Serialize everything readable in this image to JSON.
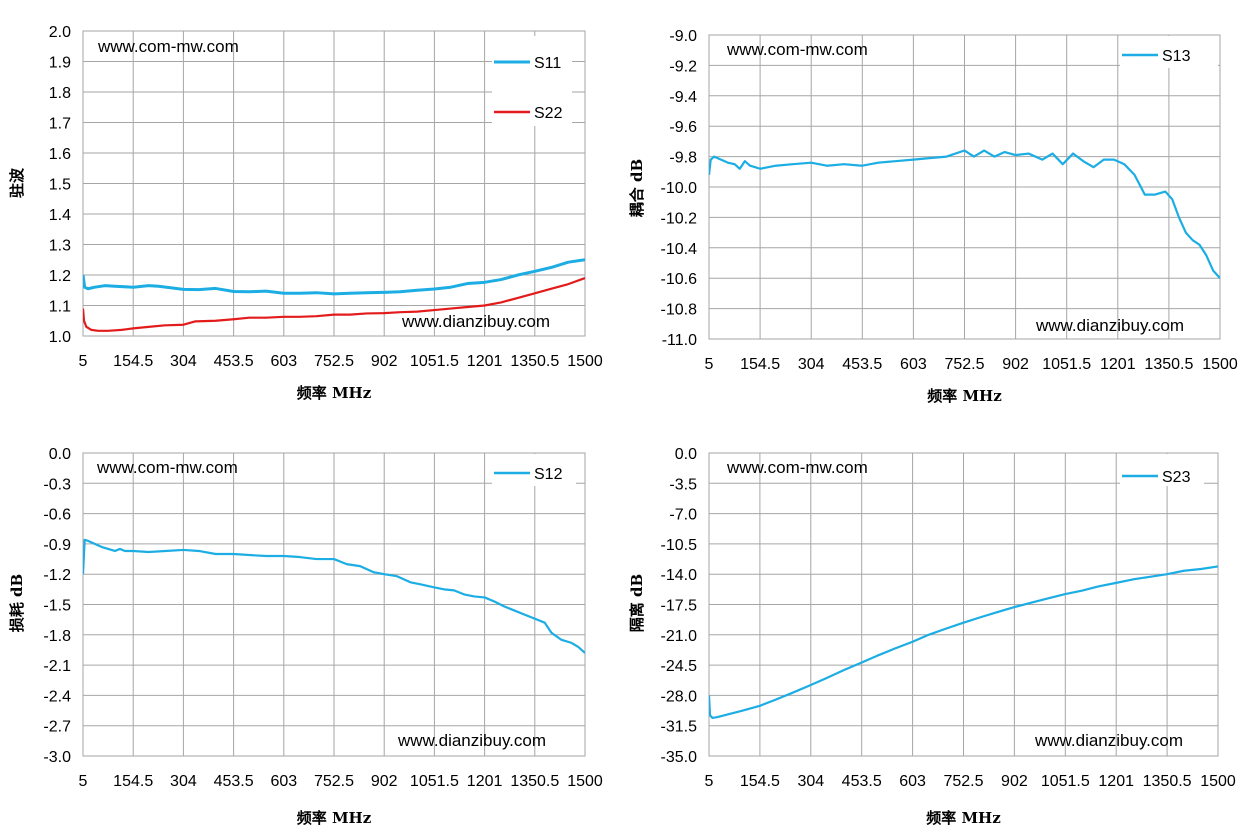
{
  "chart_data": [
    {
      "type": "line",
      "xlabel": "频率 MHz",
      "ylabel": "驻波",
      "x_ticks": [
        "5",
        "154.5",
        "304",
        "453.5",
        "603",
        "752.5",
        "902",
        "1051.5",
        "1201",
        "1350.5",
        "1500"
      ],
      "xlim": [
        5,
        1500
      ],
      "ylim": [
        1.0,
        2.0
      ],
      "y_ticks": [
        "1.0",
        "1.1",
        "1.2",
        "1.3",
        "1.4",
        "1.5",
        "1.6",
        "1.7",
        "1.8",
        "1.9",
        "2.0"
      ],
      "grid": true,
      "legend": "top-right",
      "watermarks": [
        "www.com-mw.com",
        "www.dianzibuy.com"
      ],
      "series": [
        {
          "name": "S11",
          "color": "#1cade4",
          "x": [
            5,
            10,
            20,
            40,
            70,
            100,
            154.5,
            200,
            230,
            304,
            350,
            400,
            453.5,
            500,
            550,
            603,
            650,
            700,
            752.5,
            800,
            850,
            902,
            950,
            1000,
            1051.5,
            1100,
            1150,
            1201,
            1250,
            1300,
            1350.5,
            1400,
            1450,
            1500
          ],
          "y": [
            1.2,
            1.16,
            1.155,
            1.16,
            1.165,
            1.163,
            1.16,
            1.165,
            1.163,
            1.153,
            1.152,
            1.156,
            1.146,
            1.145,
            1.147,
            1.14,
            1.14,
            1.142,
            1.138,
            1.14,
            1.142,
            1.143,
            1.145,
            1.15,
            1.154,
            1.16,
            1.172,
            1.176,
            1.185,
            1.2,
            1.212,
            1.225,
            1.242,
            1.25
          ]
        },
        {
          "name": "S22",
          "color": "#e31b1b",
          "x": [
            5,
            8,
            15,
            30,
            50,
            80,
            120,
            154.5,
            200,
            250,
            304,
            340,
            400,
            453.5,
            500,
            550,
            603,
            650,
            700,
            752.5,
            800,
            850,
            902,
            950,
            1000,
            1051.5,
            1100,
            1150,
            1201,
            1250,
            1300,
            1350.5,
            1400,
            1450,
            1500
          ],
          "y": [
            1.09,
            1.05,
            1.03,
            1.02,
            1.017,
            1.017,
            1.02,
            1.025,
            1.03,
            1.035,
            1.037,
            1.048,
            1.05,
            1.055,
            1.06,
            1.06,
            1.063,
            1.063,
            1.065,
            1.07,
            1.07,
            1.074,
            1.075,
            1.078,
            1.08,
            1.085,
            1.09,
            1.095,
            1.1,
            1.11,
            1.125,
            1.14,
            1.155,
            1.17,
            1.19
          ]
        }
      ]
    },
    {
      "type": "line",
      "xlabel": "频率 MHz",
      "ylabel": "耦合 dB",
      "x_ticks": [
        "5",
        "154.5",
        "304",
        "453.5",
        "603",
        "752.5",
        "902",
        "1051.5",
        "1201",
        "1350.5",
        "1500"
      ],
      "xlim": [
        5,
        1500
      ],
      "ylim": [
        -11.0,
        -9.0
      ],
      "y_ticks": [
        "-11.0",
        "-10.8",
        "-10.6",
        "-10.4",
        "-10.2",
        "-10.0",
        "-9.8",
        "-9.6",
        "-9.4",
        "-9.2",
        "-9.0"
      ],
      "grid": true,
      "legend": "top-right",
      "watermarks": [
        "www.com-mw.com",
        "www.dianzibuy.com"
      ],
      "series": [
        {
          "name": "S13",
          "color": "#1cade4",
          "x": [
            5,
            10,
            20,
            40,
            60,
            80,
            95,
            110,
            125,
            140,
            154.5,
            200,
            250,
            304,
            350,
            400,
            453.5,
            500,
            550,
            603,
            650,
            700,
            752.5,
            780,
            810,
            840,
            870,
            902,
            940,
            980,
            1010,
            1040,
            1070,
            1100,
            1130,
            1160,
            1190,
            1220,
            1250,
            1280,
            1310,
            1340,
            1360,
            1380,
            1400,
            1420,
            1440,
            1460,
            1480,
            1500
          ],
          "y": [
            -9.92,
            -9.82,
            -9.8,
            -9.82,
            -9.84,
            -9.85,
            -9.88,
            -9.83,
            -9.86,
            -9.87,
            -9.88,
            -9.86,
            -9.85,
            -9.84,
            -9.86,
            -9.85,
            -9.86,
            -9.84,
            -9.83,
            -9.82,
            -9.81,
            -9.8,
            -9.76,
            -9.8,
            -9.76,
            -9.8,
            -9.77,
            -9.79,
            -9.78,
            -9.82,
            -9.78,
            -9.85,
            -9.78,
            -9.83,
            -9.87,
            -9.82,
            -9.82,
            -9.85,
            -9.92,
            -10.05,
            -10.05,
            -10.03,
            -10.08,
            -10.2,
            -10.3,
            -10.35,
            -10.38,
            -10.45,
            -10.55,
            -10.6
          ]
        }
      ]
    },
    {
      "type": "line",
      "xlabel": "频率 MHz",
      "ylabel": "损耗 dB",
      "x_ticks": [
        "5",
        "154.5",
        "304",
        "453.5",
        "603",
        "752.5",
        "902",
        "1051.5",
        "1201",
        "1350.5",
        "1500"
      ],
      "xlim": [
        5,
        1500
      ],
      "ylim": [
        -3.0,
        0.0
      ],
      "y_ticks": [
        "-3.0",
        "-2.7",
        "-2.4",
        "-2.1",
        "-1.8",
        "-1.5",
        "-1.2",
        "-0.9",
        "-0.6",
        "-0.3",
        "0.0"
      ],
      "grid": true,
      "legend": "top-right",
      "watermarks": [
        "www.com-mw.com",
        "www.dianzibuy.com"
      ],
      "series": [
        {
          "name": "S12",
          "color": "#1cade4",
          "x": [
            5,
            10,
            20,
            40,
            60,
            80,
            100,
            115,
            130,
            154.5,
            200,
            250,
            304,
            350,
            400,
            453.5,
            500,
            550,
            603,
            650,
            700,
            752.5,
            790,
            830,
            870,
            902,
            940,
            980,
            1010,
            1050,
            1080,
            1110,
            1140,
            1170,
            1201,
            1230,
            1260,
            1290,
            1320,
            1350,
            1380,
            1400,
            1430,
            1460,
            1480,
            1500
          ],
          "y": [
            -1.2,
            -0.86,
            -0.87,
            -0.9,
            -0.93,
            -0.95,
            -0.97,
            -0.95,
            -0.97,
            -0.97,
            -0.98,
            -0.97,
            -0.96,
            -0.97,
            -1.0,
            -1.0,
            -1.01,
            -1.02,
            -1.02,
            -1.03,
            -1.05,
            -1.05,
            -1.1,
            -1.12,
            -1.18,
            -1.2,
            -1.22,
            -1.28,
            -1.3,
            -1.33,
            -1.35,
            -1.36,
            -1.4,
            -1.42,
            -1.43,
            -1.47,
            -1.52,
            -1.56,
            -1.6,
            -1.64,
            -1.68,
            -1.78,
            -1.85,
            -1.88,
            -1.92,
            -1.98
          ]
        }
      ]
    },
    {
      "type": "line",
      "xlabel": "频率 MHz",
      "ylabel": "隔离 dB",
      "x_ticks": [
        "5",
        "154.5",
        "304",
        "453.5",
        "603",
        "752.5",
        "902",
        "1051.5",
        "1201",
        "1350.5",
        "1500"
      ],
      "xlim": [
        5,
        1500
      ],
      "ylim": [
        -35.0,
        0.0
      ],
      "y_ticks": [
        "-35.0",
        "-31.5",
        "-28.0",
        "-24.5",
        "-21.0",
        "-17.5",
        "-14.0",
        "-10.5",
        "-7.0",
        "-3.5",
        "0.0"
      ],
      "grid": true,
      "legend": "top-right",
      "watermarks": [
        "www.com-mw.com",
        "www.dianzibuy.com"
      ],
      "series": [
        {
          "name": "S23",
          "color": "#1cade4",
          "x": [
            5,
            8,
            15,
            30,
            60,
            100,
            154.5,
            200,
            250,
            304,
            350,
            400,
            453.5,
            500,
            550,
            603,
            650,
            700,
            752.5,
            800,
            850,
            902,
            950,
            1000,
            1051.5,
            1100,
            1150,
            1201,
            1250,
            1300,
            1350.5,
            1400,
            1450,
            1500
          ],
          "y": [
            -28.0,
            -30.3,
            -30.6,
            -30.5,
            -30.2,
            -29.8,
            -29.2,
            -28.5,
            -27.7,
            -26.8,
            -26.0,
            -25.1,
            -24.2,
            -23.4,
            -22.6,
            -21.8,
            -21.0,
            -20.3,
            -19.6,
            -19.0,
            -18.4,
            -17.8,
            -17.3,
            -16.8,
            -16.3,
            -15.9,
            -15.4,
            -15.0,
            -14.6,
            -14.3,
            -14.0,
            -13.6,
            -13.4,
            -13.1
          ]
        }
      ]
    }
  ]
}
